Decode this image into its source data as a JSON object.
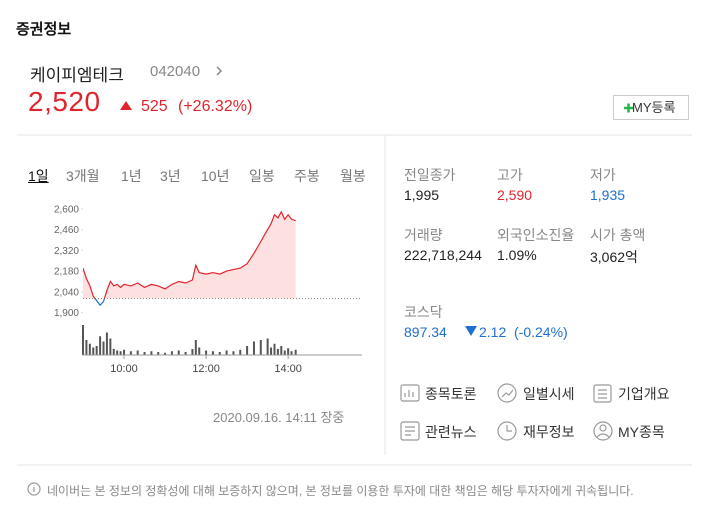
{
  "header": {
    "title": "증권정보"
  },
  "stock": {
    "name": "케이피엠테크",
    "code": "042040",
    "price": "2,520",
    "change": "525",
    "change_rate": "(+26.32%)",
    "my_button": "MY등록"
  },
  "tabs": [
    "1일",
    "3개월",
    "1년",
    "3년",
    "10년",
    "일봉",
    "주봉",
    "월봉"
  ],
  "chart_data": {
    "type": "line",
    "x": [
      9.0,
      9.083,
      9.167,
      9.25,
      9.333,
      9.417,
      9.5,
      9.583,
      9.667,
      9.75,
      9.833,
      9.917,
      10.0,
      10.167,
      10.333,
      10.5,
      10.667,
      10.833,
      11.0,
      11.167,
      11.333,
      11.5,
      11.667,
      11.75,
      11.833,
      12.0,
      12.167,
      12.333,
      12.5,
      12.667,
      12.833,
      13.0,
      13.167,
      13.333,
      13.5,
      13.583,
      13.667,
      13.75,
      13.833,
      13.917,
      14.0,
      14.083,
      14.183
    ],
    "values": [
      2200,
      2130,
      2080,
      2010,
      1980,
      1950,
      1975,
      2050,
      2110,
      2080,
      2090,
      2070,
      2090,
      2080,
      2100,
      2070,
      2090,
      2080,
      2060,
      2090,
      2110,
      2100,
      2120,
      2220,
      2170,
      2160,
      2170,
      2160,
      2180,
      2190,
      2200,
      2230,
      2300,
      2380,
      2460,
      2500,
      2560,
      2540,
      2580,
      2530,
      2560,
      2530,
      2520
    ],
    "volume": [
      40,
      20,
      15,
      10,
      12,
      25,
      18,
      30,
      22,
      8,
      6,
      5,
      7,
      5,
      6,
      4,
      5,
      4,
      3,
      5,
      6,
      4,
      8,
      20,
      10,
      6,
      5,
      4,
      6,
      5,
      7,
      12,
      18,
      20,
      22,
      10,
      15,
      8,
      12,
      6,
      9,
      5,
      7
    ],
    "volume_ylim": [
      0,
      40
    ],
    "base_value": 1995,
    "xlim": [
      9,
      15.8
    ],
    "xticks": [
      {
        "value": 10,
        "label": "10:00"
      },
      {
        "value": 12,
        "label": "12:00"
      },
      {
        "value": 14,
        "label": "14:00"
      }
    ],
    "ylim": [
      1850,
      2660
    ],
    "yticks": [
      {
        "value": 2600,
        "label": "2,600"
      },
      {
        "value": 2460,
        "label": "2,460"
      },
      {
        "value": 2320,
        "label": "2,320"
      },
      {
        "value": 2180,
        "label": "2,180"
      },
      {
        "value": 2040,
        "label": "2,040"
      },
      {
        "value": 1900,
        "label": "1,900"
      }
    ],
    "color": "#e0242e",
    "below_color": "#1e6fd1",
    "area_color": "#fde0e0",
    "volume_color": "#555555",
    "annotation": "2020.09.16. 14:11 장중"
  },
  "stats": [
    {
      "label": "전일종가",
      "value": "1,995",
      "color": "#222222"
    },
    {
      "label": "고가",
      "value": "2,590",
      "color": "#e0242e"
    },
    {
      "label": "저가",
      "value": "1,935",
      "color": "#1e6fd1"
    },
    {
      "label": "거래량",
      "value": "222,718,244",
      "color": "#222222"
    },
    {
      "label": "외국인소진율",
      "value": "1.09%",
      "color": "#222222"
    },
    {
      "label": "시가 총액",
      "value": "3,062억",
      "color": "#222222"
    }
  ],
  "index": {
    "label": "코스닥",
    "value": "897.34",
    "change": "2.12",
    "change_rate": "(-0.24%)"
  },
  "links": [
    "종목토론",
    "일별시세",
    "기업개요",
    "관련뉴스",
    "재무정보",
    "MY종목"
  ],
  "disclaimer": "네이버는 본 정보의 정확성에 대해 보증하지 않으며, 본 정보를 이용한 투자에 대한 책임은 해당 투자자에게 귀속됩니다."
}
